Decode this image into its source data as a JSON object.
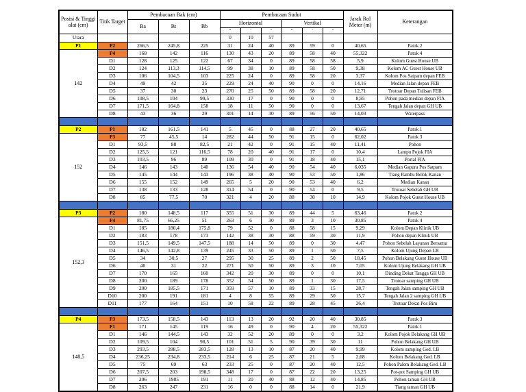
{
  "table": {
    "header": {
      "col_posisi": "Posisi & Tinggi alat (cm)",
      "col_titik": "Titik Target",
      "col_bak": "Pembacaan Bak (cm)",
      "col_sudut": "Pembacaan Sudut",
      "col_ba": "Ba",
      "col_bt": "Bt",
      "col_bb": "Bb",
      "col_horizontal": "Horizontal",
      "col_vertikal": "Vertikal",
      "deg": "°",
      "min": "'",
      "sec": "\"",
      "col_jarak": "Jarak Rol Meter (m)",
      "col_keterangan": "Keterangan"
    },
    "colors": {
      "station_fill": "#ffff00",
      "patok_fill": "#ed7d31",
      "separator_fill": "#4472c4"
    },
    "north_row": {
      "label": "Utara",
      "horizontal": [
        "0",
        "10",
        "57"
      ]
    },
    "groups": [
      {
        "station": "P1",
        "height": "142",
        "rows": [
          {
            "t": "P2",
            "patok": true,
            "c": [
              "266,5",
              "245,8",
              "225",
              "31",
              "24",
              "40",
              "89",
              "59",
              "0",
              "40,65",
              "Patok 2"
            ]
          },
          {
            "t": "P4",
            "patok": true,
            "c": [
              "168",
              "142",
              "116",
              "130",
              "43",
              "20",
              "89",
              "58",
              "40",
              "55,322",
              "Patok 4"
            ]
          },
          {
            "t": "D1",
            "patok": false,
            "c": [
              "128",
              "125",
              "122",
              "67",
              "34",
              "0",
              "89",
              "58",
              "58",
              "5,9",
              "Kolom Guest House UB"
            ]
          },
          {
            "t": "D2",
            "patok": false,
            "c": [
              "124",
              "113,3",
              "114,5",
              "99",
              "38",
              "10",
              "89",
              "58",
              "50",
              "9,38",
              "Kolom AC Guest House UB"
            ]
          },
          {
            "t": "D3",
            "patok": false,
            "c": [
              "106",
              "104,5",
              "103",
              "225",
              "24",
              "0",
              "89",
              "58",
              "20",
              "3,37",
              "Kolom Pos Satpam depan FEB"
            ]
          },
          {
            "t": "D4",
            "patok": false,
            "c": [
              "49",
              "42",
              "35",
              "229",
              "24",
              "40",
              "90",
              "0",
              "0",
              "14,16",
              "Median Jalan depan FEB"
            ]
          },
          {
            "t": "D5",
            "patok": false,
            "c": [
              "37",
              "30",
              "23",
              "270",
              "25",
              "50",
              "89",
              "58",
              "20",
              "12,71",
              "Trotoar Depan Tulisan FEB"
            ]
          },
          {
            "t": "D6",
            "patok": false,
            "c": [
              "108,5",
              "104",
              "99,5",
              "330",
              "17",
              "0",
              "90",
              "0",
              "0",
              "8,95",
              "Pohon pada median depan FIA"
            ]
          },
          {
            "t": "D7",
            "patok": false,
            "c": [
              "171,5",
              "164,8",
              "158",
              "18",
              "11",
              "50",
              "90",
              "0",
              "0",
              "13,67",
              "Tengah Jalan depan GH UB"
            ]
          },
          {
            "t": "D8",
            "patok": false,
            "c": [
              "43",
              "36",
              "29",
              "301",
              "14",
              "30",
              "89",
              "56",
              "50",
              "14,03",
              "Waterpass"
            ]
          }
        ]
      },
      {
        "station": "P2",
        "height": "152",
        "rows": [
          {
            "t": "P1",
            "patok": true,
            "c": [
              "182",
              "161,5",
              "141",
              "5",
              "45",
              "0",
              "88",
              "27",
              "20",
              "40,65",
              "Patok 1"
            ]
          },
          {
            "t": "P3",
            "patok": true,
            "c": [
              "77",
              "45,5",
              "14",
              "282",
              "44",
              "50",
              "91",
              "15",
              "0",
              "62,02",
              "Patok 3"
            ]
          },
          {
            "t": "D1",
            "patok": false,
            "c": [
              "93,5",
              "88",
              "82,5",
              "21",
              "42",
              "0",
              "91",
              "15",
              "40",
              "11,41",
              "Pohon"
            ]
          },
          {
            "t": "D2",
            "patok": false,
            "c": [
              "125,5",
              "121",
              "116,5",
              "78",
              "20",
              "40",
              "91",
              "17",
              "0",
              "10,4",
              "Lampu Pojok FIA"
            ]
          },
          {
            "t": "D3",
            "patok": false,
            "c": [
              "103,5",
              "96",
              "89",
              "109",
              "30",
              "0",
              "91",
              "18",
              "40",
              "15,1",
              "Portal FIA"
            ]
          },
          {
            "t": "D4",
            "patok": false,
            "c": [
              "146",
              "143",
              "140",
              "136",
              "54",
              "40",
              "90",
              "54",
              "40",
              "6,035",
              "Median Gapura Pos Satpam"
            ]
          },
          {
            "t": "D5",
            "patok": false,
            "c": [
              "145",
              "144",
              "143",
              "196",
              "38",
              "40",
              "90",
              "53",
              "50",
              "1,86",
              "Tiang Rambu Belok Kanan"
            ]
          },
          {
            "t": "D6",
            "patok": false,
            "c": [
              "155",
              "152",
              "149",
              "265",
              "5",
              "20",
              "90",
              "53",
              "40",
              "6,2",
              "Median Kanan"
            ]
          },
          {
            "t": "D7",
            "patok": false,
            "c": [
              "138",
              "133",
              "128",
              "314",
              "54",
              "0",
              "90",
              "54",
              "0",
              "9,5",
              "Trotoar Sebelah GH UB"
            ]
          },
          {
            "t": "D8",
            "patok": false,
            "c": [
              "85",
              "77,5",
              "70",
              "321",
              "4",
              "20",
              "88",
              "38",
              "10",
              "14,9",
              "Kolom Pojok Guest House UB"
            ]
          }
        ]
      },
      {
        "station": "P3",
        "height": "152,3",
        "rows": [
          {
            "t": "P2",
            "patok": true,
            "c": [
              "180",
              "148,5",
              "117",
              "355",
              "51",
              "30",
              "89",
              "44",
              "5",
              "63,46",
              "Patok 2"
            ]
          },
          {
            "t": "P4",
            "patok": true,
            "c": [
              "81,75",
              "66,25",
              "51",
              "263",
              "6",
              "30",
              "89",
              "3",
              "10",
              "30,85",
              "Patok 4"
            ]
          },
          {
            "t": "D1",
            "patok": false,
            "c": [
              "185",
              "180,4",
              "175,8",
              "79",
              "52",
              "0",
              "88",
              "58",
              "15",
              "9,29",
              "Kolom Depan Klinik UB"
            ]
          },
          {
            "t": "D2",
            "patok": false,
            "c": [
              "183",
              "178",
              "173",
              "142",
              "38",
              "30",
              "88",
              "59",
              "30",
              "11,9",
              "Pohon depan Klinik UB"
            ]
          },
          {
            "t": "D3",
            "patok": false,
            "c": [
              "151,5",
              "149,5",
              "147,5",
              "188",
              "14",
              "50",
              "89",
              "0",
              "30",
              "4,47",
              "Pohon Sebelah Layanan Bersama"
            ]
          },
          {
            "t": "D4",
            "patok": false,
            "c": [
              "146,5",
              "142,8",
              "139",
              "245",
              "33",
              "50",
              "89",
              "1",
              "50",
              "7,5",
              "Kolom Ujung Depan LB"
            ]
          },
          {
            "t": "D5",
            "patok": false,
            "c": [
              "34",
              "30,5",
              "27",
              "295",
              "30",
              "25",
              "89",
              "2",
              "50",
              "18,45",
              "Pohon Belakang Guest House UB"
            ]
          },
          {
            "t": "D6",
            "patok": false,
            "c": [
              "40",
              "31",
              "22",
              "271",
              "50",
              "50",
              "89",
              "3",
              "10",
              "7,05",
              "Kolom Ujung Belakang GH UB"
            ]
          },
          {
            "t": "D7",
            "patok": false,
            "c": [
              "170",
              "165",
              "160",
              "342",
              "20",
              "30",
              "89",
              "0",
              "0",
              "10,1",
              "Dinding Dekat Tangga GH UB"
            ]
          },
          {
            "t": "D8",
            "patok": false,
            "c": [
              "200",
              "189",
              "178",
              "352",
              "54",
              "50",
              "89",
              "1",
              "30",
              "17,5",
              "Trotoar samping GH UB"
            ]
          },
          {
            "t": "D9",
            "patok": false,
            "c": [
              "200",
              "185,5",
              "171",
              "359",
              "57",
              "10",
              "89",
              "33",
              "15",
              "28,7",
              "Tengah Jalan samping GH UB"
            ]
          },
          {
            "t": "D10",
            "patok": false,
            "c": [
              "200",
              "191",
              "181",
              "4",
              "8",
              "55",
              "89",
              "29",
              "50",
              "15,7",
              "Tengah Jalan 2 samping GH UB"
            ]
          },
          {
            "t": "D11",
            "patok": false,
            "c": [
              "177",
              "164",
              "151",
              "10",
              "58",
              "22",
              "89",
              "28",
              "45",
              "26,4",
              "Trotoar Dekat Pos Biru"
            ]
          }
        ]
      },
      {
        "station": "P4",
        "height": "148,5",
        "rows": [
          {
            "t": "P3",
            "patok": true,
            "c": [
              "173,5",
              "158,5",
              "143",
              "113",
              "13",
              "20",
              "92",
              "20",
              "40",
              "30,85",
              "Patok 3"
            ]
          },
          {
            "t": "P1",
            "patok": true,
            "c": [
              "171",
              "145",
              "119",
              "16",
              "49",
              "0",
              "90",
              "4",
              "20",
              "55,322",
              "Patok 1"
            ]
          },
          {
            "t": "D1",
            "patok": false,
            "c": [
              "146",
              "144,5",
              "143",
              "32",
              "52",
              "20",
              "89",
              "0",
              "0",
              "3,2",
              "Kolom Pojok Belakang GH UB"
            ]
          },
          {
            "t": "D2",
            "patok": false,
            "c": [
              "109,5",
              "104",
              "98,5",
              "101",
              "51",
              "5",
              "90",
              "39",
              "30",
              "11",
              "Pohon Belakang GH UB"
            ]
          },
          {
            "t": "D3",
            "patok": false,
            "c": [
              "293,5",
              "288,5",
              "283,5",
              "128",
              "13",
              "10",
              "87",
              "20",
              "40",
              "9,99",
              "Kolom samping Ged. LB"
            ]
          },
          {
            "t": "D4",
            "patok": false,
            "c": [
              "236,25",
              "234,8",
              "233,5",
              "214",
              "6",
              "25",
              "87",
              "21",
              "5",
              "2,68",
              "Kolom Belakang Ged. LB"
            ]
          },
          {
            "t": "D5",
            "patok": false,
            "c": [
              "75",
              "69",
              "63",
              "233",
              "25",
              "0",
              "87",
              "20",
              "40",
              "12,5",
              "Pohon Palem Belakang Ged. LB"
            ]
          },
          {
            "t": "D6",
            "patok": false,
            "c": [
              "207,5",
              "203",
              "198,5",
              "348",
              "17",
              "0",
              "87",
              "22",
              "20",
              "13,25",
              "Pot-pot Samping GH UB"
            ]
          },
          {
            "t": "D7",
            "patok": false,
            "c": [
              "206",
              "1985",
              "191",
              "11",
              "20",
              "40",
              "88",
              "12",
              "40",
              "14,85",
              "Pohon taman GH UB"
            ]
          },
          {
            "t": "D8",
            "patok": false,
            "c": [
              "263",
              "247",
              "231",
              "16",
              "0",
              "0",
              "88",
              "14",
              "0",
              "21,9",
              "Tiang taman GH UB"
            ]
          }
        ]
      }
    ]
  }
}
